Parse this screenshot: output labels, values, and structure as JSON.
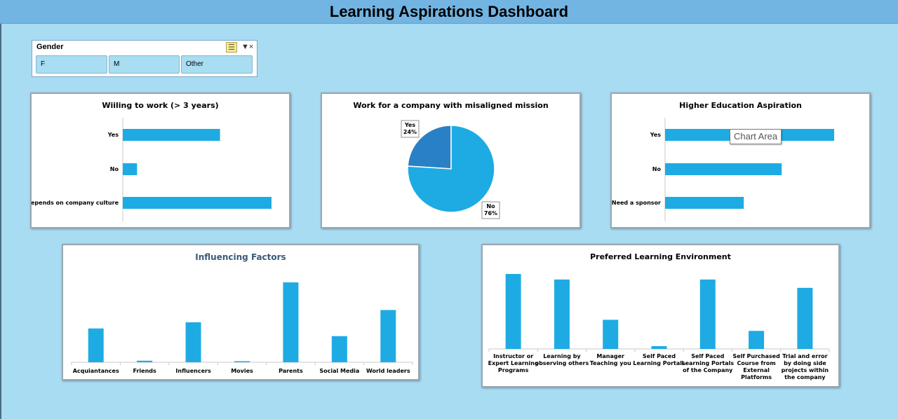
{
  "dashboard": {
    "title": "Learning Aspirations Dashboard"
  },
  "slicer": {
    "header": "Gender",
    "options": [
      "F",
      "M",
      "Other"
    ],
    "multi_select_icon": "multi-select-icon",
    "clear_filter_icon": "clear-filter-icon"
  },
  "tooltip": {
    "text": "Chart Area"
  },
  "chart_data": [
    {
      "type": "bar",
      "orientation": "horizontal",
      "title": "Wiiling to work (> 3 years)",
      "categories": [
        "Yes",
        "No",
        "Depends on company culture"
      ],
      "values": [
        34,
        5,
        52
      ],
      "xlim": [
        0,
        52
      ]
    },
    {
      "type": "pie",
      "title": "Work for a company with misaligned mission",
      "labels": [
        "Yes",
        "No"
      ],
      "values": [
        24,
        76
      ],
      "value_labels": [
        "24%",
        "76%"
      ],
      "colors": [
        "#2a80c5",
        "#1eabe4"
      ]
    },
    {
      "type": "bar",
      "orientation": "horizontal",
      "title": "Higher Education Aspiration",
      "categories": [
        "Yes",
        "No",
        "Need a sponsor"
      ],
      "values": [
        58,
        40,
        27
      ],
      "xlim": [
        0,
        58
      ]
    },
    {
      "type": "bar",
      "title": "Influencing Factors",
      "categories": [
        "Acquiantances",
        "Friends",
        "Influencers",
        "Movies",
        "Parents",
        "Social Media",
        "World leaders"
      ],
      "values": [
        22,
        1,
        26,
        0.5,
        52,
        17,
        34
      ],
      "ylim": [
        0,
        52
      ]
    },
    {
      "type": "bar",
      "title": "Preferred Learning Environment",
      "categories": [
        "Instructor or Expert Learning Programs",
        "Learning by observing others",
        "Manager Teaching you",
        "Self Paced Learning Portals",
        "Self Paced Learning Portals of the Company",
        "Self Purchased Course from External Platforms",
        "Trial and error by doing side projects within the company"
      ],
      "category_lines": [
        [
          "Instructor or",
          "Expert Learning",
          "Programs"
        ],
        [
          "Learning by",
          "observing others"
        ],
        [
          "Manager",
          "Teaching you"
        ],
        [
          "Self Paced",
          "Learning Portals"
        ],
        [
          "Self Paced",
          "Learning Portals",
          "of the Company"
        ],
        [
          "Self Purchased",
          "Course from",
          "External",
          "Platforms"
        ],
        [
          "Trial and error",
          "by doing side",
          "projects within",
          "the company"
        ]
      ],
      "values": [
        54,
        50,
        21,
        2,
        50,
        13,
        44
      ],
      "ylim": [
        0,
        54
      ]
    }
  ]
}
